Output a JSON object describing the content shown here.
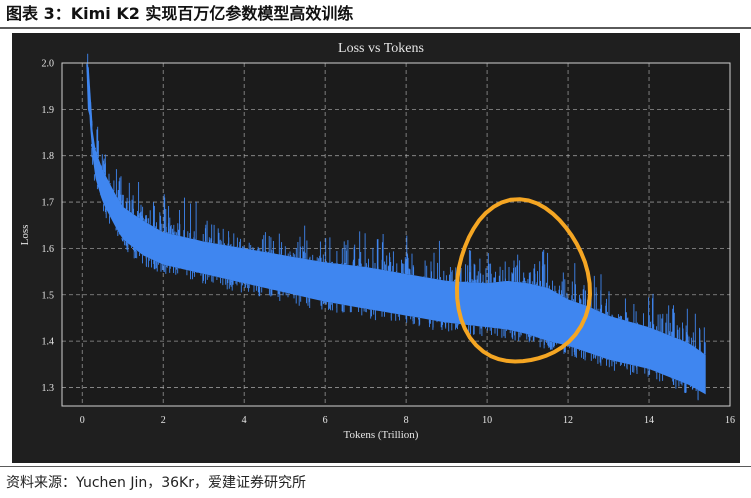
{
  "figure_title": "图表 3：Kimi K2 实现百万亿参数模型高效训练",
  "source": "资料来源：Yuchen Jin，36Kr，爱建证券研究所",
  "colors": {
    "panel_background": "#1f1f1f",
    "plot_background": "#1b1b1b",
    "series": "#3f86f0",
    "highlight": "#f5a623",
    "grid": "#bdbdbd",
    "text": "#e6e6e6"
  },
  "chart_data": {
    "type": "line",
    "title": "Loss vs Tokens",
    "xlabel": "Tokens (Trillion)",
    "ylabel": "Loss",
    "xlim": [
      -0.5,
      16
    ],
    "ylim": [
      1.26,
      2.0
    ],
    "xticks": [
      0,
      2,
      4,
      6,
      8,
      10,
      12,
      14,
      16
    ],
    "yticks": [
      1.3,
      1.4,
      1.5,
      1.6,
      1.7,
      1.8,
      1.9,
      2.0
    ],
    "xtick_labels": [
      "0",
      "2",
      "4",
      "6",
      "8",
      "10",
      "12",
      "14",
      "16"
    ],
    "ytick_labels": [
      "1.3",
      "1.4",
      "1.5",
      "1.6",
      "1.7",
      "1.8",
      "1.9",
      "2.0"
    ],
    "grid": true,
    "series": [
      {
        "x": [
          0.12,
          0.2,
          0.3,
          0.5,
          0.8,
          1.0,
          1.5,
          2,
          3,
          4,
          5,
          6,
          7,
          8,
          9,
          10,
          10.5,
          11,
          11.5,
          12,
          12.5,
          13,
          14,
          15,
          15.4
        ],
        "lower": [
          2.0,
          1.85,
          1.76,
          1.7,
          1.65,
          1.62,
          1.585,
          1.565,
          1.545,
          1.525,
          1.505,
          1.485,
          1.47,
          1.455,
          1.44,
          1.43,
          1.425,
          1.415,
          1.4,
          1.39,
          1.375,
          1.36,
          1.34,
          1.305,
          1.285
        ],
        "upper": [
          2.0,
          1.9,
          1.82,
          1.77,
          1.72,
          1.69,
          1.66,
          1.635,
          1.615,
          1.6,
          1.585,
          1.57,
          1.56,
          1.545,
          1.53,
          1.525,
          1.53,
          1.525,
          1.515,
          1.49,
          1.475,
          1.455,
          1.43,
          1.395,
          1.37
        ]
      }
    ],
    "annotation": {
      "shape": "circle",
      "x_range": [
        9.2,
        12.5
      ],
      "y_range": [
        1.34,
        1.7
      ]
    }
  }
}
